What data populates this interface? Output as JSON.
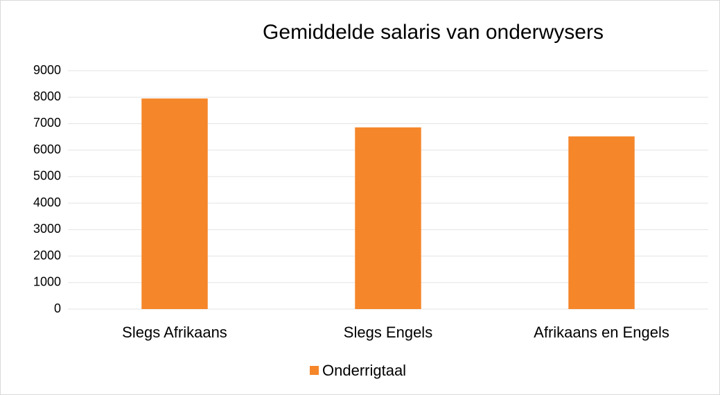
{
  "chart_data": {
    "type": "bar",
    "title": "Gemiddelde salaris van onderwysers",
    "categories": [
      "Slegs Afrikaans",
      "Slegs Engels",
      "Afrikaans en Engels"
    ],
    "series": [
      {
        "name": "Onderrigtaal",
        "color": "#f5862a",
        "values": [
          7950,
          6860,
          6520
        ]
      }
    ],
    "ylim": [
      0,
      9000
    ],
    "yticks": [
      0,
      1000,
      2000,
      3000,
      4000,
      5000,
      6000,
      7000,
      8000,
      9000
    ],
    "grid": true,
    "legend": "bottom"
  }
}
